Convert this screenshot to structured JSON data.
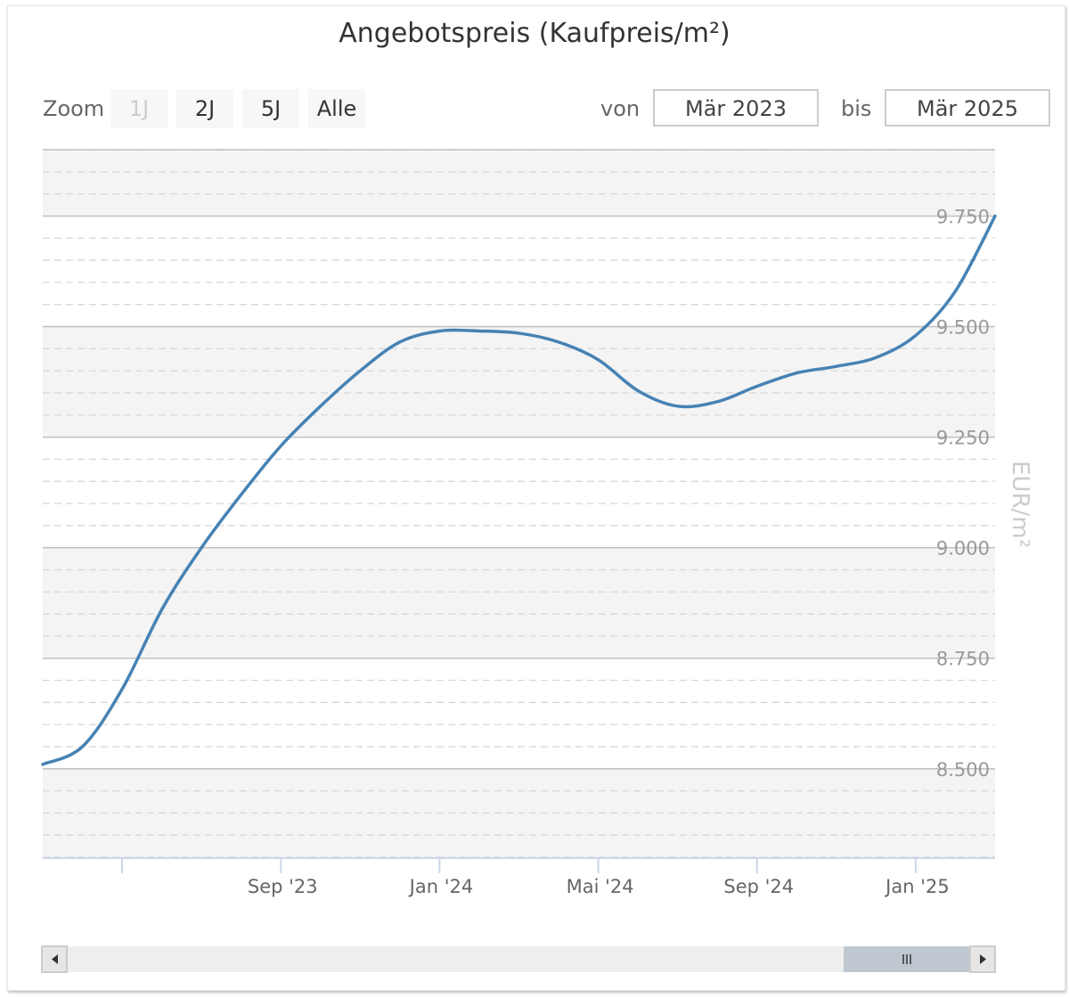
{
  "title": "Angebotspreis (Kaufpreis/m²)",
  "zoom": {
    "label": "Zoom",
    "buttons": [
      {
        "label": "1J",
        "disabled": true
      },
      {
        "label": "2J",
        "disabled": false
      },
      {
        "label": "5J",
        "disabled": false
      },
      {
        "label": "Alle",
        "disabled": false
      }
    ]
  },
  "range": {
    "from_label": "von",
    "from_value": "Mär 2023",
    "to_label": "bis",
    "to_value": "Mär 2025"
  },
  "navigator": {
    "left_arrow_icon": "arrow-left-icon",
    "right_arrow_icon": "arrow-right-icon",
    "handle_icon": "grip-lines-icon",
    "window": [
      0.86,
      1.0
    ]
  },
  "colors": {
    "series": "#4682b4",
    "band": "#f4f4f4",
    "grid": "#c0c0c0",
    "minor_grid": "#d8d8d8"
  },
  "chart_data": {
    "type": "line",
    "ylabel": "EUR/m²",
    "ylim": [
      8300,
      9900
    ],
    "yticks": [
      {
        "value": 8500,
        "label": "8.500"
      },
      {
        "value": 8750,
        "label": "8.750"
      },
      {
        "value": 9000,
        "label": "9.000"
      },
      {
        "value": 9250,
        "label": "9.250"
      },
      {
        "value": 9500,
        "label": "9.500"
      },
      {
        "value": 9750,
        "label": "9.750"
      }
    ],
    "xlim": [
      "2023-03",
      "2025-03"
    ],
    "xticks": [
      {
        "date": "2023-05",
        "label": ""
      },
      {
        "date": "2023-09",
        "label": "Sep '23"
      },
      {
        "date": "2024-01",
        "label": "Jan '24"
      },
      {
        "date": "2024-05",
        "label": "Mai '24"
      },
      {
        "date": "2024-09",
        "label": "Sep '24"
      },
      {
        "date": "2025-01",
        "label": "Jan '25"
      }
    ],
    "series": [
      {
        "name": "",
        "points": [
          {
            "x": "2023-03",
            "y": 8510
          },
          {
            "x": "2023-04",
            "y": 8550
          },
          {
            "x": "2023-05",
            "y": 8680
          },
          {
            "x": "2023-06",
            "y": 8860
          },
          {
            "x": "2023-07",
            "y": 9000
          },
          {
            "x": "2023-08",
            "y": 9120
          },
          {
            "x": "2023-09",
            "y": 9230
          },
          {
            "x": "2023-10",
            "y": 9320
          },
          {
            "x": "2023-11",
            "y": 9400
          },
          {
            "x": "2023-12",
            "y": 9465
          },
          {
            "x": "2024-01",
            "y": 9490
          },
          {
            "x": "2024-02",
            "y": 9490
          },
          {
            "x": "2024-03",
            "y": 9485
          },
          {
            "x": "2024-04",
            "y": 9465
          },
          {
            "x": "2024-05",
            "y": 9425
          },
          {
            "x": "2024-06",
            "y": 9355
          },
          {
            "x": "2024-07",
            "y": 9320
          },
          {
            "x": "2024-08",
            "y": 9330
          },
          {
            "x": "2024-09",
            "y": 9365
          },
          {
            "x": "2024-10",
            "y": 9395
          },
          {
            "x": "2024-11",
            "y": 9410
          },
          {
            "x": "2024-12",
            "y": 9430
          },
          {
            "x": "2025-01",
            "y": 9480
          },
          {
            "x": "2025-02",
            "y": 9580
          },
          {
            "x": "2025-03",
            "y": 9750
          }
        ]
      }
    ],
    "grid": true,
    "legend": "none"
  }
}
